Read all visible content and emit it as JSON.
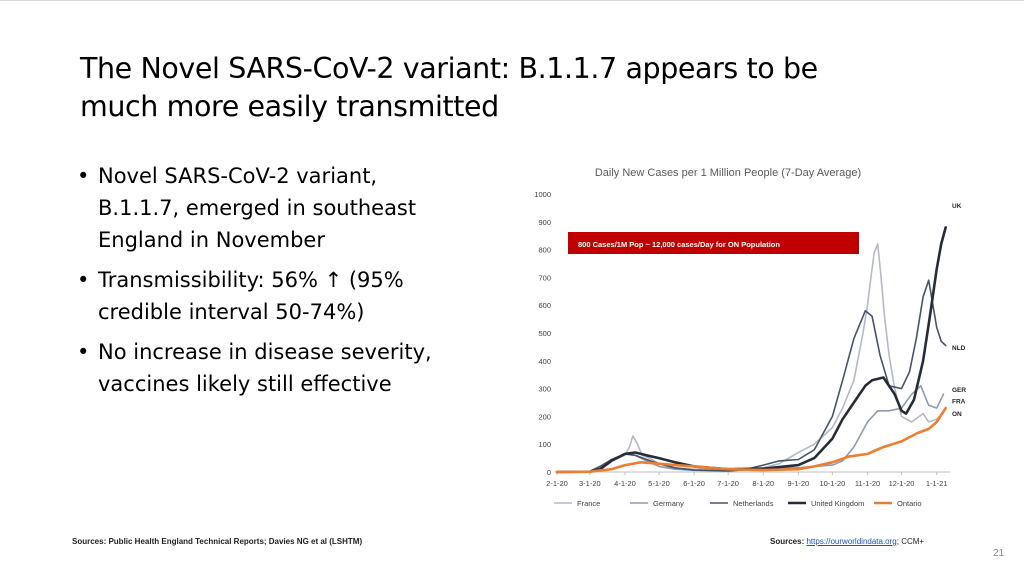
{
  "slide": {
    "title_lines": [
      "The Novel SARS-CoV-2 variant: B.1.1.7 appears to be",
      "much more easily transmitted"
    ],
    "bullets": [
      {
        "lines": [
          "Novel SARS-CoV-2 variant,",
          "B.1.1.7, emerged in southeast",
          "England in November"
        ]
      },
      {
        "lines": [
          "Transmissibility: 56% ↑ (95%",
          "credible interval 50-74%)"
        ]
      },
      {
        "lines": [
          "No increase in disease severity,",
          "vaccines likely still effective"
        ]
      }
    ],
    "footer_left": "Sources: Public Health England Technical Reports; Davies NG et al (LSHTM)",
    "footer_right_label": "Sources:",
    "footer_right_link": "https://ourworldindata.org",
    "footer_right_suffix": "; CCM+",
    "page_number": "21"
  },
  "chart_data": {
    "type": "line",
    "title": "Daily New Cases per 1 Million People (7-Day Average)",
    "ylim": [
      0,
      1000
    ],
    "y_ticks": [
      "0",
      "100",
      "200",
      "300",
      "400",
      "500",
      "600",
      "700",
      "800",
      "900",
      "1000"
    ],
    "x_ticks": [
      "2-1-20",
      "3-1-20",
      "4-1-20",
      "5-1-20",
      "6-1-20",
      "7-1-20",
      "8-1-20",
      "9-1-20",
      "10-1-20",
      "11-1-20",
      "12-1-20",
      "1-1-21"
    ],
    "x_tick_days": [
      0,
      29,
      60,
      90,
      121,
      151,
      182,
      213,
      243,
      274,
      304,
      335
    ],
    "grid": false,
    "legend_position": "bottom",
    "annotation": "800 Cases/1M Pop ~ 12,000 cases/Day for ON Population",
    "annotation_color": "#c00000",
    "series": [
      {
        "name": "France",
        "label": "FRA",
        "color": "#b4b9c8",
        "width": 1.6,
        "x": [
          "2020-02-01",
          "2020-03-01",
          "2020-03-10",
          "2020-03-20",
          "2020-04-01",
          "2020-04-05",
          "2020-04-08",
          "2020-04-12",
          "2020-04-16",
          "2020-04-25",
          "2020-05-01",
          "2020-05-15",
          "2020-06-01",
          "2020-06-15",
          "2020-07-01",
          "2020-07-15",
          "2020-08-01",
          "2020-08-15",
          "2020-09-01",
          "2020-09-15",
          "2020-10-01",
          "2020-10-10",
          "2020-10-20",
          "2020-10-28",
          "2020-11-01",
          "2020-11-04",
          "2020-11-07",
          "2020-11-10",
          "2020-11-13",
          "2020-11-16",
          "2020-11-20",
          "2020-11-25",
          "2020-12-01",
          "2020-12-10",
          "2020-12-20",
          "2020-12-25",
          "2021-01-01",
          "2021-01-07"
        ],
        "y": [
          0,
          2,
          15,
          40,
          60,
          90,
          130,
          100,
          60,
          45,
          30,
          12,
          10,
          10,
          8,
          10,
          15,
          30,
          70,
          100,
          160,
          230,
          330,
          500,
          600,
          700,
          790,
          820,
          700,
          560,
          420,
          300,
          200,
          180,
          210,
          180,
          190,
          215
        ]
      },
      {
        "name": "Germany",
        "label": "GER",
        "color": "#8c9bb0",
        "width": 1.6,
        "x": [
          "2020-02-01",
          "2020-03-01",
          "2020-03-10",
          "2020-03-20",
          "2020-04-01",
          "2020-04-10",
          "2020-04-20",
          "2020-05-01",
          "2020-05-15",
          "2020-06-01",
          "2020-07-01",
          "2020-08-01",
          "2020-08-15",
          "2020-09-01",
          "2020-09-15",
          "2020-10-01",
          "2020-10-10",
          "2020-10-20",
          "2020-11-01",
          "2020-11-10",
          "2020-11-20",
          "2020-12-01",
          "2020-12-10",
          "2020-12-18",
          "2020-12-25",
          "2021-01-01",
          "2021-01-07"
        ],
        "y": [
          0,
          2,
          10,
          40,
          65,
          60,
          40,
          20,
          10,
          6,
          5,
          12,
          15,
          15,
          20,
          25,
          40,
          90,
          180,
          220,
          220,
          230,
          280,
          310,
          240,
          230,
          280
        ]
      },
      {
        "name": "Netherlands",
        "label": "NLD",
        "color": "#44546a",
        "width": 1.6,
        "x": [
          "2020-02-01",
          "2020-03-01",
          "2020-03-10",
          "2020-03-20",
          "2020-04-01",
          "2020-04-10",
          "2020-04-20",
          "2020-05-01",
          "2020-05-15",
          "2020-06-01",
          "2020-07-01",
          "2020-07-15",
          "2020-08-01",
          "2020-08-15",
          "2020-09-01",
          "2020-09-15",
          "2020-10-01",
          "2020-10-10",
          "2020-10-20",
          "2020-10-30",
          "2020-11-05",
          "2020-11-12",
          "2020-11-20",
          "2020-12-01",
          "2020-12-08",
          "2020-12-14",
          "2020-12-20",
          "2020-12-25",
          "2021-01-01",
          "2021-01-05",
          "2021-01-09"
        ],
        "y": [
          0,
          3,
          20,
          45,
          65,
          60,
          45,
          30,
          15,
          7,
          4,
          8,
          25,
          40,
          45,
          80,
          200,
          330,
          480,
          580,
          560,
          420,
          310,
          300,
          360,
          480,
          630,
          690,
          520,
          470,
          455
        ]
      },
      {
        "name": "United Kingdom",
        "label": "UK",
        "color": "#262c38",
        "width": 2.6,
        "x": [
          "2020-02-01",
          "2020-03-01",
          "2020-03-10",
          "2020-03-20",
          "2020-04-01",
          "2020-04-10",
          "2020-04-20",
          "2020-05-01",
          "2020-05-15",
          "2020-06-01",
          "2020-07-01",
          "2020-08-01",
          "2020-09-01",
          "2020-09-15",
          "2020-10-01",
          "2020-10-10",
          "2020-10-20",
          "2020-10-30",
          "2020-11-05",
          "2020-11-15",
          "2020-11-25",
          "2020-12-01",
          "2020-12-05",
          "2020-12-12",
          "2020-12-20",
          "2020-12-26",
          "2021-01-01",
          "2021-01-05",
          "2021-01-09"
        ],
        "y": [
          0,
          1,
          10,
          40,
          65,
          70,
          60,
          50,
          35,
          20,
          10,
          12,
          25,
          50,
          120,
          190,
          250,
          310,
          330,
          340,
          280,
          220,
          210,
          260,
          400,
          560,
          730,
          820,
          880
        ]
      },
      {
        "name": "Ontario",
        "label": "ON",
        "color": "#ed7d31",
        "width": 2.6,
        "x": [
          "2020-02-01",
          "2020-03-01",
          "2020-03-20",
          "2020-04-01",
          "2020-04-15",
          "2020-05-01",
          "2020-05-15",
          "2020-06-01",
          "2020-06-15",
          "2020-07-01",
          "2020-08-01",
          "2020-09-01",
          "2020-09-15",
          "2020-10-01",
          "2020-10-15",
          "2020-11-01",
          "2020-11-15",
          "2020-12-01",
          "2020-12-15",
          "2020-12-25",
          "2021-01-01",
          "2021-01-09"
        ],
        "y": [
          0,
          1,
          10,
          25,
          35,
          30,
          25,
          20,
          15,
          10,
          7,
          10,
          20,
          35,
          55,
          65,
          90,
          110,
          140,
          155,
          180,
          230
        ]
      }
    ]
  }
}
